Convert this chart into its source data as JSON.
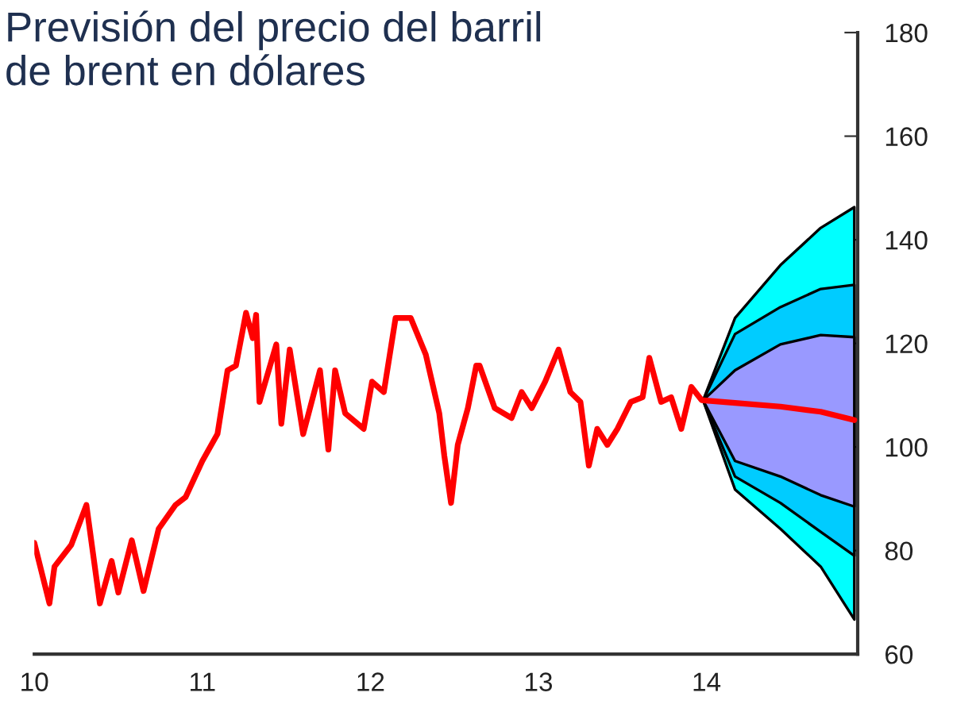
{
  "chart_data": {
    "type": "line",
    "title": "Previsión del precio del barril\nde brent en dólares",
    "xlim": [
      10,
      14.9
    ],
    "xticks": [
      10,
      11,
      12,
      13,
      14
    ],
    "ylim": [
      60,
      180
    ],
    "yticks": [
      60,
      80,
      100,
      120,
      140,
      160,
      180
    ],
    "series": [
      {
        "type": "line",
        "color": "#00ffff",
        "x": [
          13.98,
          14.17,
          14.44,
          14.68,
          14.88
        ],
        "values": [
          null,
          null,
          null,
          null,
          null
        ],
        "lower": [
          109,
          91.8,
          84.2,
          76.9,
          66.7
        ],
        "upper": [
          109,
          124.9,
          135.1,
          142.3,
          146.3
        ]
      },
      {
        "type": "line",
        "color": "#00ccff",
        "x": [
          13.98,
          14.17,
          14.44,
          14.68,
          14.88
        ],
        "values": [
          null,
          null,
          null,
          null,
          null
        ],
        "lower": [
          109,
          94.3,
          89.2,
          83.6,
          79
        ],
        "upper": [
          109,
          121.8,
          127,
          130.5,
          131.3
        ]
      },
      {
        "type": "line",
        "color": "#9999ff",
        "x": [
          13.98,
          14.17,
          14.44,
          14.68,
          14.88
        ],
        "values": [
          null,
          null,
          null,
          null,
          null
        ],
        "lower": [
          109,
          97.3,
          94.3,
          90.7,
          88.5
        ],
        "upper": [
          109,
          114.8,
          119.8,
          121.6,
          121.2
        ]
      },
      {
        "type": "line",
        "color": "#ff0000",
        "x": [
          13.98,
          14.17,
          14.44,
          14.68,
          14.88
        ],
        "values": [
          109,
          108.5,
          107.8,
          106.8,
          105.2
        ]
      },
      {
        "color": "#ff0000",
        "x": [
          10.0,
          10.09,
          10.12,
          10.22,
          10.31,
          10.39,
          10.46,
          10.5,
          10.58,
          10.65,
          10.74,
          10.84,
          10.9,
          11.0,
          11.09,
          11.15,
          11.2,
          11.26,
          11.3,
          11.32,
          11.34,
          11.44,
          11.47,
          11.52,
          11.6,
          11.7,
          11.75,
          11.79,
          11.85,
          11.96,
          12.01,
          12.08,
          12.15,
          12.24,
          12.33,
          12.41,
          12.44,
          12.48,
          12.52,
          12.58,
          12.63,
          12.65,
          12.74,
          12.84,
          12.9,
          12.96,
          13.04,
          13.12,
          13.19,
          13.25,
          13.3,
          13.35,
          13.41,
          13.47,
          13.55,
          13.62,
          13.66,
          13.73,
          13.79,
          13.85,
          13.91,
          13.97
        ],
        "values": [
          81.5,
          69.8,
          76.9,
          81.1,
          88.8,
          69.8,
          78,
          71.9,
          82,
          72.2,
          84.2,
          88.8,
          90.3,
          97.3,
          102.5,
          114.8,
          115.7,
          125.9,
          121,
          125.5,
          108.7,
          119.8,
          104.5,
          118.8,
          102.5,
          114.8,
          99.5,
          114.8,
          106.5,
          103.5,
          112.6,
          110.6,
          124.9,
          124.9,
          117.8,
          106.5,
          98.3,
          89.2,
          100.4,
          107.5,
          115.7,
          115.7,
          107.5,
          105.6,
          110.6,
          107.5,
          112.6,
          118.8,
          110.6,
          108.7,
          96.4,
          103.5,
          100.4,
          103.5,
          108.7,
          109.6,
          117.2,
          108.7,
          109.6,
          103.5,
          111.6,
          109.1
        ]
      }
    ]
  }
}
